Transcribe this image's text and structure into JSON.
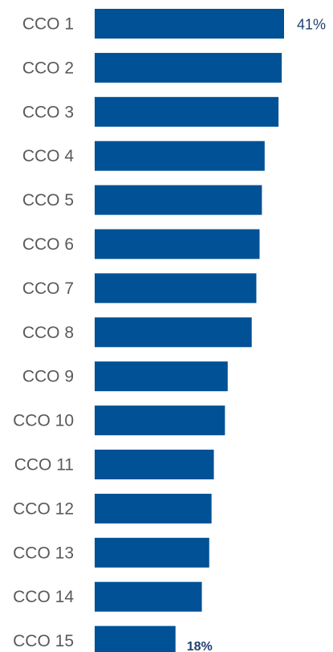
{
  "chart_data": {
    "type": "bar",
    "orientation": "horizontal",
    "categories": [
      "CCO 1",
      "CCO 2",
      "CCO 3",
      "CCO 4",
      "CCO 5",
      "CCO 6",
      "CCO 7",
      "CCO 8",
      "CCO 9",
      "CCO 10",
      "CCO 11",
      "CCO 12",
      "CCO 13",
      "CCO 14",
      "CCO 15"
    ],
    "values": [
      41,
      40.5,
      39.8,
      36.8,
      36.2,
      35.7,
      35,
      34,
      28.8,
      28.2,
      25.8,
      25.3,
      24.8,
      23.2,
      17.5
    ],
    "data_labels": [
      {
        "index": 0,
        "text": "41%"
      },
      {
        "index": 14,
        "text": "18%"
      }
    ],
    "xlim": [
      0,
      41
    ],
    "bar_color": "#005195",
    "grid": false,
    "legend": "none",
    "title": "",
    "xlabel": "",
    "ylabel": ""
  }
}
